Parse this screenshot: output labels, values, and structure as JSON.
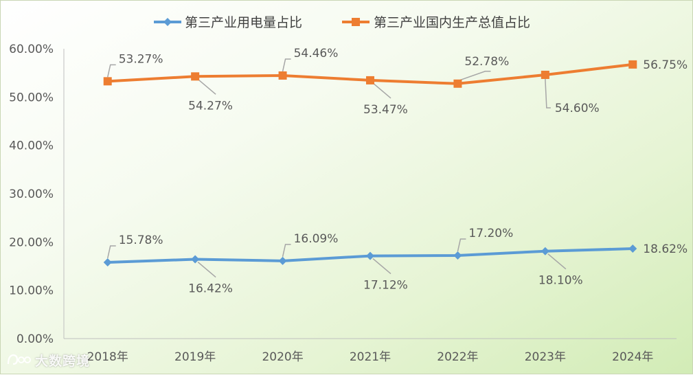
{
  "chart_data": {
    "type": "line",
    "title": "",
    "xlabel": "",
    "ylabel": "",
    "categories": [
      "2018年",
      "2019年",
      "2020年",
      "2021年",
      "2022年",
      "2023年",
      "2024年"
    ],
    "ylim": [
      0,
      0.6
    ],
    "yticks": [
      "0.00%",
      "10.00%",
      "20.00%",
      "30.00%",
      "40.00%",
      "50.00%",
      "60.00%"
    ],
    "grid": false,
    "legend_position": "top",
    "series": [
      {
        "name": "第三产业用电量占比",
        "color": "#5b9bd5",
        "marker": "diamond",
        "values": [
          0.1578,
          0.1642,
          0.1609,
          0.1712,
          0.172,
          0.181,
          0.1862
        ],
        "labels": [
          "15.78%",
          "16.42%",
          "16.09%",
          "17.12%",
          "17.20%",
          "18.10%",
          "18.62%"
        ]
      },
      {
        "name": "第三产业国内生产总值占比",
        "color": "#ed7d31",
        "marker": "square",
        "values": [
          0.5327,
          0.5427,
          0.5446,
          0.5347,
          0.5278,
          0.546,
          0.5675
        ],
        "labels": [
          "53.27%",
          "54.27%",
          "54.46%",
          "53.47%",
          "52.78%",
          "54.60%",
          "56.75%"
        ]
      }
    ]
  },
  "watermark": {
    "text": "大数跨境",
    "icon": "dashuju-logo-icon"
  }
}
